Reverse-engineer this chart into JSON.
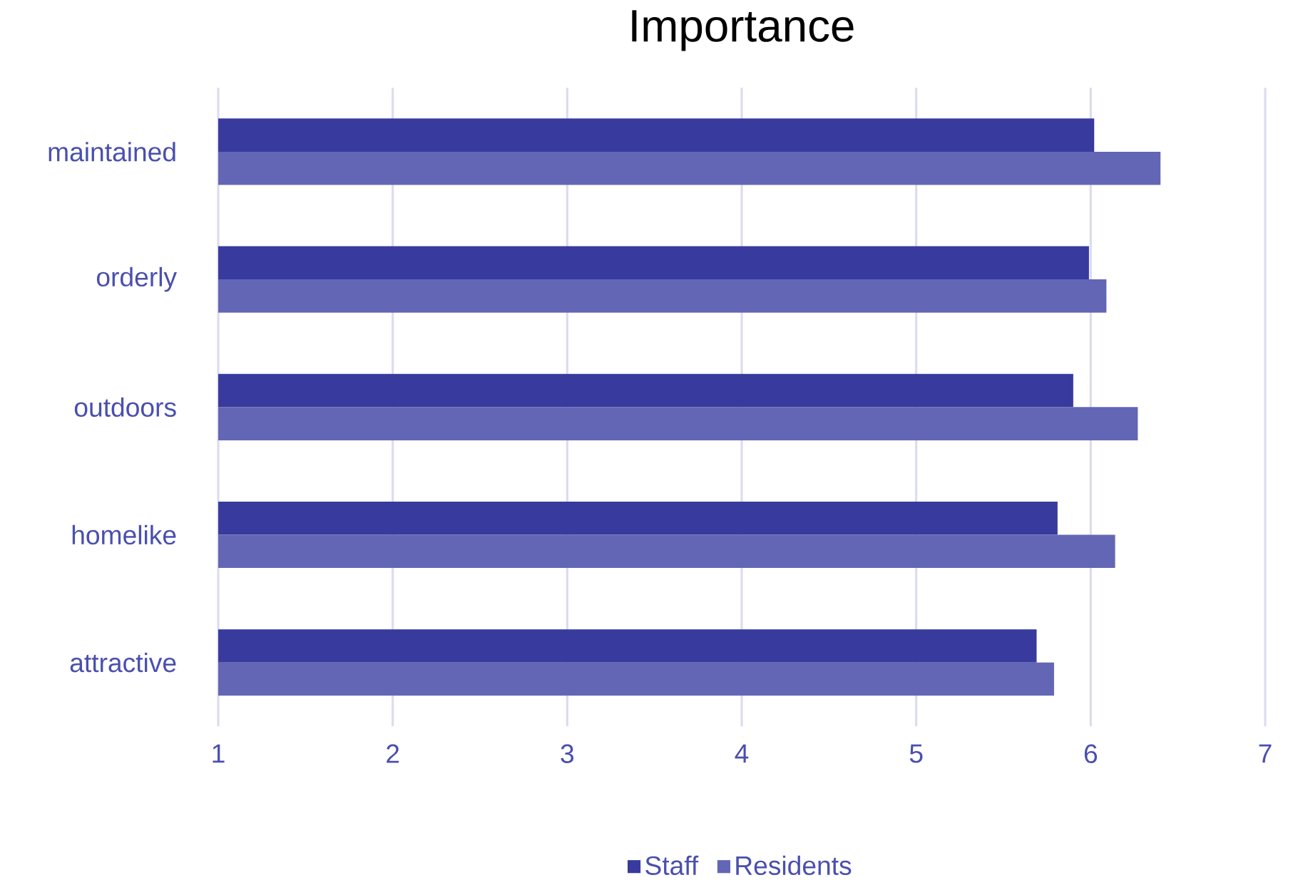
{
  "chart_data": {
    "type": "bar",
    "orientation": "horizontal",
    "title": "Importance",
    "categories": [
      "maintained",
      "orderly",
      "outdoors",
      "homelike",
      "attractive"
    ],
    "series": [
      {
        "name": "Staff",
        "color": "#383a9e",
        "values": [
          6.02,
          5.99,
          5.9,
          5.81,
          5.69
        ]
      },
      {
        "name": "Residents",
        "color": "#6366b5",
        "values": [
          6.4,
          6.09,
          6.27,
          6.14,
          5.79
        ]
      }
    ],
    "xlim": [
      1,
      7
    ],
    "xticks": [
      1,
      2,
      3,
      4,
      5,
      6,
      7
    ],
    "grid": "x",
    "legend": "bottom"
  }
}
